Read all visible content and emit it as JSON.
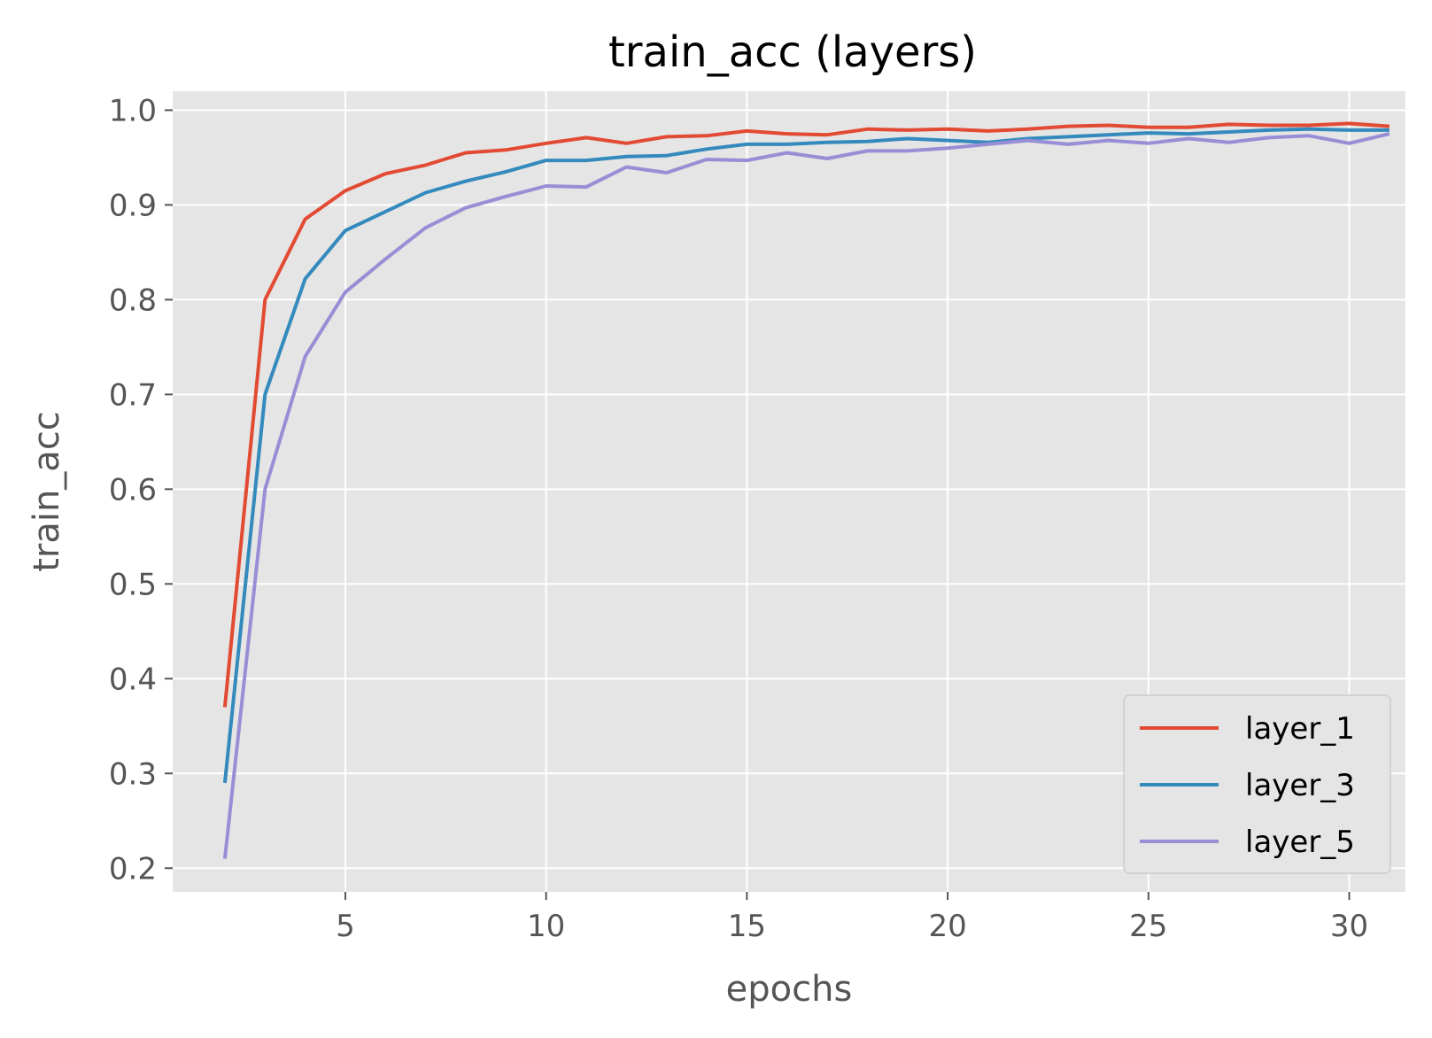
{
  "chart_data": {
    "type": "line",
    "title": "train_acc (layers)",
    "xlabel": "epochs",
    "ylabel": "train_acc",
    "xlim": [
      0.7,
      31.4
    ],
    "ylim": [
      0.175,
      1.02
    ],
    "xticks": [
      5,
      10,
      15,
      20,
      25,
      30
    ],
    "yticks": [
      0.2,
      0.3,
      0.4,
      0.5,
      0.6,
      0.7,
      0.8,
      0.9,
      1.0
    ],
    "grid": true,
    "legend_position": "bottom-right",
    "x": [
      2,
      3,
      4,
      5,
      6,
      7,
      8,
      9,
      10,
      11,
      12,
      13,
      14,
      15,
      16,
      17,
      18,
      19,
      20,
      21,
      22,
      23,
      24,
      25,
      26,
      27,
      28,
      29,
      30,
      31
    ],
    "series": [
      {
        "name": "layer_1",
        "color": "#E24A33",
        "values": [
          0.37,
          0.8,
          0.885,
          0.915,
          0.933,
          0.942,
          0.955,
          0.958,
          0.965,
          0.971,
          0.965,
          0.972,
          0.973,
          0.978,
          0.975,
          0.974,
          0.98,
          0.979,
          0.98,
          0.978,
          0.98,
          0.983,
          0.984,
          0.982,
          0.982,
          0.985,
          0.984,
          0.984,
          0.986,
          0.983
        ]
      },
      {
        "name": "layer_3",
        "color": "#348ABD",
        "values": [
          0.29,
          0.7,
          0.822,
          0.873,
          0.893,
          0.913,
          0.925,
          0.935,
          0.947,
          0.947,
          0.951,
          0.952,
          0.959,
          0.964,
          0.964,
          0.966,
          0.967,
          0.97,
          0.968,
          0.966,
          0.97,
          0.972,
          0.974,
          0.976,
          0.975,
          0.977,
          0.979,
          0.98,
          0.979,
          0.979
        ]
      },
      {
        "name": "layer_5",
        "color": "#988ED5",
        "values": [
          0.21,
          0.6,
          0.74,
          0.808,
          0.843,
          0.876,
          0.897,
          0.909,
          0.92,
          0.919,
          0.94,
          0.934,
          0.948,
          0.947,
          0.955,
          0.949,
          0.957,
          0.957,
          0.96,
          0.964,
          0.968,
          0.964,
          0.968,
          0.965,
          0.97,
          0.966,
          0.971,
          0.973,
          0.965,
          0.975
        ]
      }
    ]
  }
}
